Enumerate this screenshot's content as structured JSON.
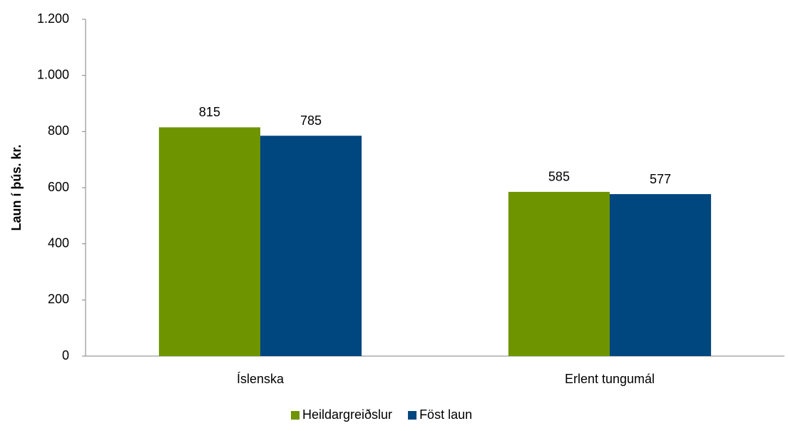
{
  "chart_data": {
    "type": "bar",
    "y_label": "Laun í þús. kr.",
    "categories": [
      "Íslenska",
      "Erlent tungumál"
    ],
    "series": [
      {
        "name": "Heildargreiðslur",
        "color": "#6e9400",
        "values": [
          815,
          585
        ]
      },
      {
        "name": "Föst laun",
        "color": "#00467f",
        "values": [
          785,
          577
        ]
      }
    ],
    "ylim": [
      0,
      1200
    ],
    "yticks": [
      0,
      200,
      400,
      600,
      800,
      {
        "value": 1000,
        "label": "1.000"
      },
      {
        "value": 1200,
        "label": "1.200"
      }
    ],
    "grid": false,
    "legend": "bottom"
  }
}
